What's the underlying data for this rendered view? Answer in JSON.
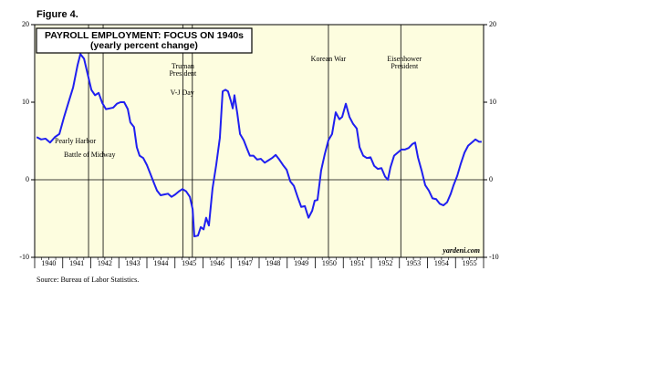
{
  "figure_label": "Figure 4.",
  "source": "Source: Bureau of Labor Statistics.",
  "chart_data": {
    "type": "line",
    "title": "PAYROLL EMPLOYMENT: FOCUS ON 1940s",
    "subtitle": "(yearly percent change)",
    "credit": "yardeni.com",
    "xlim": [
      1940,
      1956
    ],
    "xticks": [
      {
        "value": 1940.5,
        "label": "1940"
      },
      {
        "value": 1941.5,
        "label": "1941"
      },
      {
        "value": 1942.5,
        "label": "1942"
      },
      {
        "value": 1943.5,
        "label": "1943"
      },
      {
        "value": 1944.5,
        "label": "1944"
      },
      {
        "value": 1945.5,
        "label": "1945"
      },
      {
        "value": 1946.5,
        "label": "1946"
      },
      {
        "value": 1947.5,
        "label": "1947"
      },
      {
        "value": 1948.5,
        "label": "1948"
      },
      {
        "value": 1949.5,
        "label": "1949"
      },
      {
        "value": 1950.5,
        "label": "1950"
      },
      {
        "value": 1951.5,
        "label": "1951"
      },
      {
        "value": 1952.5,
        "label": "1952"
      },
      {
        "value": 1953.5,
        "label": "1953"
      },
      {
        "value": 1954.5,
        "label": "1954"
      },
      {
        "value": 1955.5,
        "label": "1955"
      }
    ],
    "ylim": [
      -10,
      20
    ],
    "yticks": [
      -10,
      0,
      10,
      20
    ],
    "zero_line": true,
    "background": "#fdfddf",
    "annotations": [
      {
        "label": [
          "Pearly Harbor"
        ],
        "x": 1941.92
      },
      {
        "label": [
          "Battle of Midway"
        ],
        "x": 1942.44
      },
      {
        "label": [
          "Truman",
          "President"
        ],
        "x": 1945.28
      },
      {
        "label": [
          "V-J Day"
        ],
        "x": 1945.62
      },
      {
        "label": [
          "Korean War"
        ],
        "x": 1950.47
      },
      {
        "label": [
          "Eisenhower",
          "President"
        ],
        "x": 1953.05
      }
    ],
    "series": [
      {
        "name": "Payroll employment",
        "color": "#1f1ff0",
        "x": [
          1940.07,
          1940.23,
          1940.39,
          1940.55,
          1940.72,
          1940.88,
          1941.04,
          1941.2,
          1941.37,
          1941.53,
          1941.63,
          1941.76,
          1941.89,
          1942.02,
          1942.15,
          1942.28,
          1942.41,
          1942.54,
          1942.67,
          1942.8,
          1942.93,
          1943.06,
          1943.19,
          1943.32,
          1943.41,
          1943.54,
          1943.64,
          1943.74,
          1943.87,
          1944.0,
          1944.13,
          1944.26,
          1944.36,
          1944.49,
          1944.62,
          1944.75,
          1944.88,
          1945.01,
          1945.14,
          1945.27,
          1945.4,
          1945.53,
          1945.63,
          1945.69,
          1945.82,
          1945.92,
          1946.02,
          1946.11,
          1946.21,
          1946.34,
          1946.47,
          1946.6,
          1946.7,
          1946.8,
          1946.89,
          1946.99,
          1947.06,
          1947.12,
          1947.22,
          1947.32,
          1947.45,
          1947.58,
          1947.67,
          1947.8,
          1947.93,
          1948.06,
          1948.2,
          1948.33,
          1948.46,
          1948.59,
          1948.72,
          1948.85,
          1948.98,
          1949.11,
          1949.24,
          1949.37,
          1949.5,
          1949.63,
          1949.76,
          1949.89,
          1949.98,
          1950.08,
          1950.21,
          1950.34,
          1950.47,
          1950.6,
          1950.73,
          1950.86,
          1950.96,
          1951.09,
          1951.22,
          1951.35,
          1951.48,
          1951.58,
          1951.71,
          1951.84,
          1951.97,
          1952.1,
          1952.23,
          1952.36,
          1952.49,
          1952.59,
          1952.68,
          1952.81,
          1952.94,
          1953.07,
          1953.2,
          1953.33,
          1953.46,
          1953.56,
          1953.66,
          1953.79,
          1953.92,
          1954.05,
          1954.18,
          1954.31,
          1954.44,
          1954.57,
          1954.7,
          1954.83,
          1954.93,
          1955.06,
          1955.19,
          1955.32,
          1955.45,
          1955.58,
          1955.71,
          1955.84,
          1955.93
        ],
        "values": [
          5.5,
          5.2,
          5.3,
          4.8,
          5.5,
          5.9,
          8,
          9.9,
          11.9,
          14.8,
          16.2,
          15.6,
          13.6,
          11.6,
          10.9,
          11.2,
          9.9,
          9.1,
          9.2,
          9.3,
          9.8,
          10,
          10,
          9.1,
          7.4,
          6.8,
          4.2,
          3.1,
          2.8,
          1.9,
          0.7,
          -0.5,
          -1.4,
          -2,
          -1.9,
          -1.8,
          -2.2,
          -1.9,
          -1.5,
          -1.2,
          -1.5,
          -2.2,
          -3.8,
          -7.3,
          -7.2,
          -6.1,
          -6.4,
          -4.9,
          -5.9,
          -1.1,
          1.9,
          5.4,
          11.4,
          11.6,
          11.4,
          10.2,
          9.2,
          10.9,
          8.6,
          5.9,
          5.1,
          3.9,
          3.1,
          3.1,
          2.6,
          2.7,
          2.2,
          2.5,
          2.8,
          3.2,
          2.6,
          1.9,
          1.3,
          -0.2,
          -0.8,
          -2.2,
          -3.5,
          -3.4,
          -4.9,
          -4,
          -2.7,
          -2.6,
          1.2,
          3.3,
          5.1,
          5.9,
          8.7,
          7.8,
          8.1,
          9.8,
          8.1,
          7.2,
          6.6,
          4.2,
          3.1,
          2.8,
          2.9,
          1.8,
          1.4,
          1.5,
          0.4,
          0,
          1.6,
          3.1,
          3.5,
          3.9,
          3.9,
          4.1,
          4.6,
          4.8,
          2.9,
          1.2,
          -0.7,
          -1.4,
          -2.4,
          -2.5,
          -3.1,
          -3.3,
          -2.9,
          -1.8,
          -0.7,
          0.5,
          2.1,
          3.5,
          4.4,
          4.8,
          5.2,
          4.9,
          4.9
        ]
      }
    ]
  }
}
